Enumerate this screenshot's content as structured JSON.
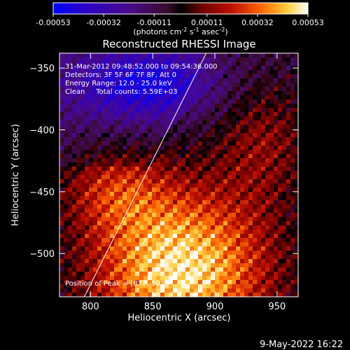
{
  "chart_data": {
    "type": "heatmap",
    "title": "Reconstructed RHESSI Image",
    "xlabel": "Heliocentric X (arcsec)",
    "ylabel": "Heliocentric Y (arcsec)",
    "xlim": [
      775,
      967
    ],
    "ylim": [
      -535,
      -338
    ],
    "x_ticks": [
      800,
      850,
      900,
      950
    ],
    "y_ticks": [
      -350,
      -400,
      -450,
      -500
    ],
    "colorbar": {
      "min": -0.00053,
      "max": 0.00053,
      "tick_values": [
        -0.00053,
        -0.00032,
        -0.00011,
        0.00011,
        0.00032,
        0.00053
      ],
      "tick_labels": [
        "-0.00053",
        "-0.00032",
        "-0.00011",
        "0.00011",
        "0.00032",
        "0.00053"
      ],
      "units_text": "(photons cm",
      "units_exp1": "-2",
      "units_mid": " s",
      "units_exp2": "-1",
      "units_end": " asec",
      "units_exp3": "-2",
      "units_close": ")"
    },
    "annotations": [
      "31-Mar-2012 09:48:52.000 to 09:54:36.000",
      "Detectors: 3F 5F 6F 7F 8F, Att 0",
      "Energy Range: 12.0 - 25.0 keV",
      "Clean     Total counts: 5.59E+03"
    ],
    "peak_label": "Position of Peak = [872,-507]",
    "peak": [
      872,
      -507
    ],
    "limb_line": [
      [
        795,
        -535
      ],
      [
        893,
        -338
      ]
    ],
    "grid": false
  },
  "footer": {
    "timestamp": "9-May-2022 16:22"
  }
}
